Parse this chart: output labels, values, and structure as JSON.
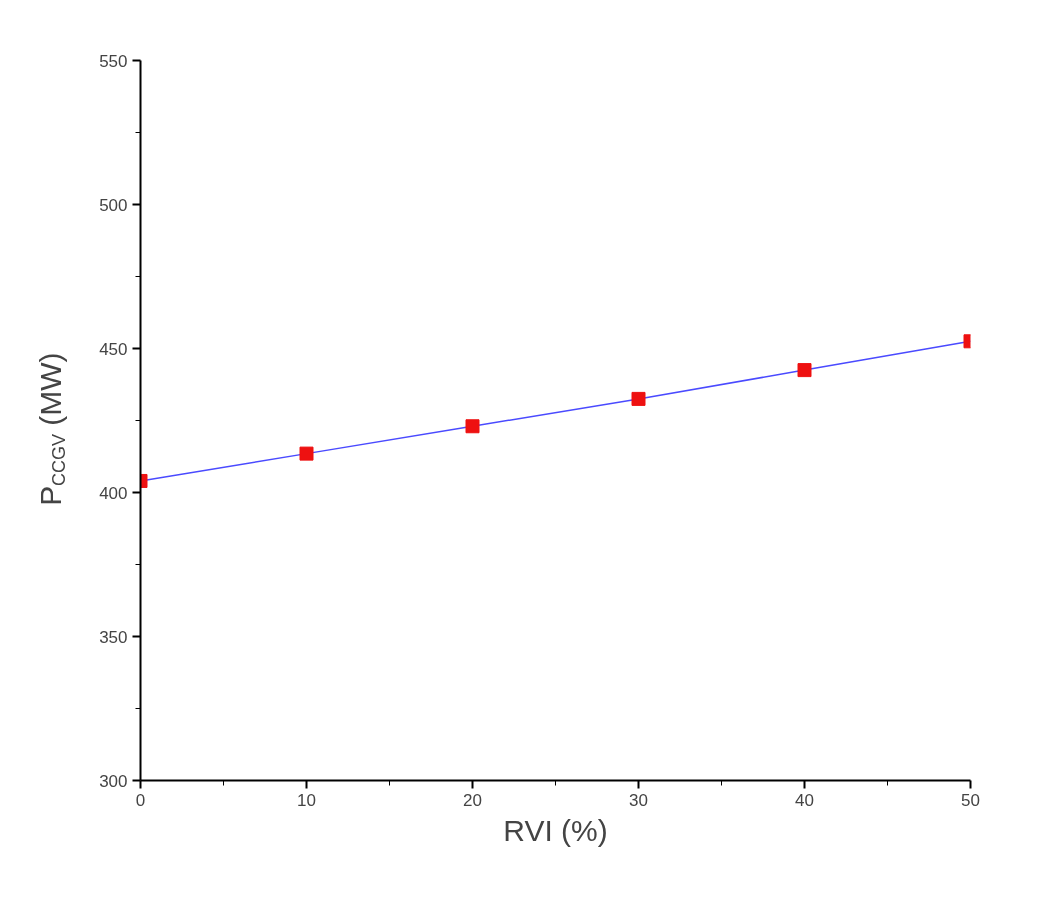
{
  "chart_data": {
    "type": "line",
    "xlabel": "RVI (%)",
    "ylabel": "P$_{CCGV}$ (MW)",
    "x": [
      0,
      10,
      20,
      30,
      40,
      50
    ],
    "series": [
      {
        "color": "#4a4aff",
        "colors": [
          "#ee1111",
          "#ee1111",
          "#ee1111",
          "#ee1111",
          "#ee1111",
          "#ee1111"
        ],
        "values": [
          404,
          413.5,
          423,
          432.5,
          442.5,
          452.5
        ]
      }
    ],
    "marker": "square",
    "xlim": [
      0,
      50
    ],
    "ylim": [
      300,
      550
    ],
    "xticks": [
      0,
      {
        "value": 5,
        "label": null
      },
      10,
      {
        "value": 15,
        "label": null
      },
      20,
      {
        "value": 25,
        "label": null
      },
      30,
      {
        "value": 35,
        "label": null
      },
      40,
      {
        "value": 45,
        "label": null
      },
      50
    ],
    "yticks": [
      300,
      {
        "value": 325,
        "label": null
      },
      350,
      {
        "value": 375,
        "label": null
      },
      400,
      {
        "value": 425,
        "label": null
      },
      450,
      {
        "value": 475,
        "label": null
      },
      500,
      {
        "value": 525,
        "label": null
      },
      550
    ],
    "grid": false
  }
}
